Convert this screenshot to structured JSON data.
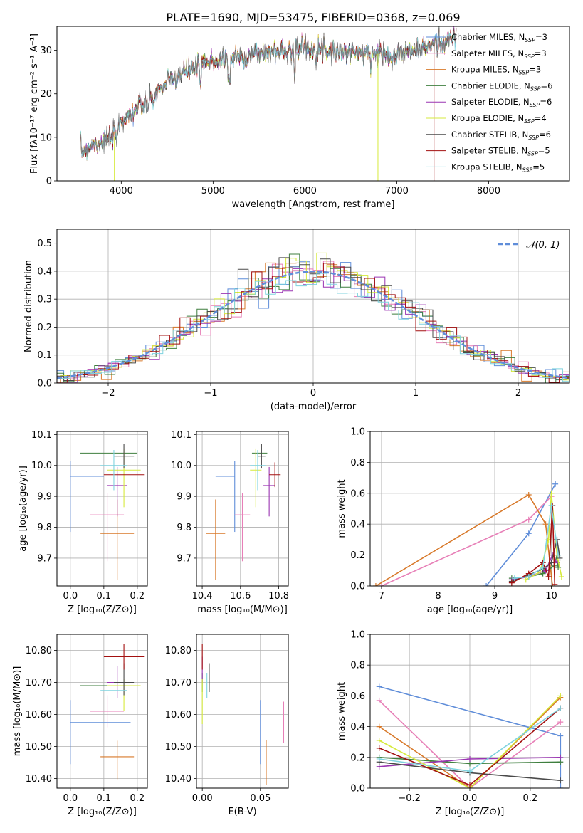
{
  "title": "PLATE=1690, MJD=53475, FIBERID=0368, z=0.069",
  "colors": {
    "chabrier_miles": "#5f8dd9",
    "salpeter_miles": "#e77fb7",
    "kroupa_miles": "#d8792a",
    "chabrier_elodie": "#3f7f3f",
    "salpeter_elodie": "#9a35b2",
    "kroupa_elodie": "#d6ea3c",
    "chabrier_stelib": "#4a4a4a",
    "salpeter_stelib": "#a31010",
    "kroupa_stelib": "#7fd3df",
    "grid": "#b0b0b0"
  },
  "chart_data": [
    {
      "id": "spectrum",
      "type": "line",
      "xlabel": "wavelength [Angstrom, rest frame]",
      "ylabel": "Flux [fλ10⁻¹⁷ erg cm⁻² s⁻¹ A⁻¹]",
      "xlim": [
        3300,
        8880
      ],
      "ylim": [
        0,
        35.5
      ],
      "xticks": [
        4000,
        5000,
        6000,
        7000,
        8000
      ],
      "yticks": [
        0,
        10,
        20,
        30
      ],
      "grid": false,
      "legend_position": "right",
      "legend": [
        {
          "label": "Chabrier MILES, N",
          "sub": "SSP",
          "suffix": "=3",
          "color_key": "chabrier_miles"
        },
        {
          "label": "Salpeter MILES, N",
          "sub": "SSP",
          "suffix": "=3",
          "color_key": "salpeter_miles"
        },
        {
          "label": "Kroupa MILES, N",
          "sub": "SSP",
          "suffix": "=3",
          "color_key": "kroupa_miles"
        },
        {
          "label": "Chabrier ELODIE, N",
          "sub": "SSP",
          "suffix": "=6",
          "color_key": "chabrier_elodie"
        },
        {
          "label": "Salpeter ELODIE, N",
          "sub": "SSP",
          "suffix": "=6",
          "color_key": "salpeter_elodie"
        },
        {
          "label": "Kroupa ELODIE, N",
          "sub": "SSP",
          "suffix": "=4",
          "color_key": "kroupa_elodie"
        },
        {
          "label": "Chabrier STELIB, N",
          "sub": "SSP",
          "suffix": "=6",
          "color_key": "chabrier_stelib"
        },
        {
          "label": "Salpeter STELIB, N",
          "sub": "SSP",
          "suffix": "=5",
          "color_key": "salpeter_stelib"
        },
        {
          "label": "Kroupa STELIB, N",
          "sub": "SSP",
          "suffix": "=5",
          "color_key": "kroupa_stelib"
        }
      ],
      "continuum": {
        "x": [
          3560,
          3700,
          3850,
          3950,
          4000,
          4100,
          4200,
          4300,
          4400,
          4500,
          4700,
          4900,
          5100,
          5300,
          5600,
          5900,
          6100,
          6300,
          6600,
          6900,
          7100,
          7300,
          7500,
          7650
        ],
        "y": [
          6.5,
          8.5,
          9.5,
          10.5,
          14.0,
          15.5,
          17.0,
          17.5,
          20.5,
          22.5,
          25.0,
          27.0,
          28.0,
          28.5,
          29.5,
          30.5,
          30.5,
          30.0,
          29.5,
          29.0,
          29.5,
          30.5,
          32.0,
          32.8
        ]
      },
      "spikes": [
        {
          "x": 3925,
          "y": 0
        },
        {
          "x": 6795,
          "y": 0
        },
        {
          "x": 7405,
          "y": 0
        }
      ]
    },
    {
      "id": "residuals",
      "type": "step",
      "xlabel": "(data-model)/error",
      "ylabel": "Normed distribution",
      "xlim": [
        -2.5,
        2.5
      ],
      "ylim": [
        0,
        0.55
      ],
      "xticks": [
        -2,
        -1,
        0,
        1,
        2
      ],
      "yticks": [
        0.0,
        0.1,
        0.2,
        0.3,
        0.4,
        0.5
      ],
      "grid": true,
      "bin_width": 0.1,
      "legend": {
        "label": "𝒩(0, 1)",
        "position": "top-right"
      },
      "normal": {
        "mean": 0,
        "sigma": 1
      }
    },
    {
      "id": "age_vs_Z",
      "type": "errorbar",
      "xlabel": "Z [log₁₀(Z/Z⊙)]",
      "ylabel": "age  [log₁₀(age/yr)]",
      "xlim": [
        -0.04,
        0.23
      ],
      "ylim": [
        9.61,
        10.11
      ],
      "xticks": [
        0.0,
        0.1,
        0.2
      ],
      "yticks": [
        9.7,
        9.8,
        9.9,
        10.0,
        10.1
      ],
      "grid": true,
      "points": [
        {
          "c": "chabrier_miles",
          "x": 0.0,
          "xerr": [
            0.0,
            0.0
          ],
          "y": 9.965,
          "yerr": [
            0.18,
            0.05
          ]
        },
        {
          "c": "chabrier_miles",
          "x": 0.1,
          "xerr": [
            0.1,
            0.0
          ],
          "y": 9.965,
          "yerr": [
            0.0,
            0.0
          ]
        },
        {
          "c": "salpeter_miles",
          "x": 0.11,
          "xerr": [
            0.05,
            0.05
          ],
          "y": 9.84,
          "yerr": [
            0.15,
            0.07
          ]
        },
        {
          "c": "kroupa_miles",
          "x": 0.14,
          "xerr": [
            0.05,
            0.05
          ],
          "y": 9.78,
          "yerr": [
            0.15,
            0.11
          ]
        },
        {
          "c": "chabrier_elodie",
          "x": 0.15,
          "xerr": [
            0.12,
            0.05
          ],
          "y": 10.04,
          "yerr": [
            0.0,
            0.0
          ]
        },
        {
          "c": "salpeter_elodie",
          "x": 0.14,
          "xerr": [
            0.03,
            0.03
          ],
          "y": 9.935,
          "yerr": [
            0.1,
            0.06
          ]
        },
        {
          "c": "kroupa_elodie",
          "x": 0.16,
          "xerr": [
            0.05,
            0.05
          ],
          "y": 9.985,
          "yerr": [
            0.12,
            0.07
          ]
        },
        {
          "c": "chabrier_stelib",
          "x": 0.16,
          "xerr": [
            0.03,
            0.03
          ],
          "y": 10.03,
          "yerr": [
            0.04,
            0.04
          ]
        },
        {
          "c": "salpeter_stelib",
          "x": 0.16,
          "xerr": [
            0.06,
            0.06
          ],
          "y": 9.97,
          "yerr": [
            0.0,
            0.0
          ]
        },
        {
          "c": "kroupa_stelib",
          "x": 0.13,
          "xerr": [
            0.04,
            0.04
          ],
          "y": 10.0,
          "yerr": [
            0.08,
            0.05
          ]
        }
      ]
    },
    {
      "id": "age_vs_mass",
      "type": "errorbar",
      "xlabel": "mass [log₁₀(M/M⊙)]",
      "ylabel": "",
      "xlim": [
        10.37,
        10.85
      ],
      "ylim": [
        9.61,
        10.11
      ],
      "xticks": [
        10.4,
        10.6,
        10.8
      ],
      "yticks": [
        9.7,
        9.8,
        9.9,
        10.0,
        10.1
      ],
      "grid": true,
      "points": [
        {
          "c": "chabrier_miles",
          "x": 10.57,
          "xerr": [
            0.1,
            0.0
          ],
          "y": 9.965,
          "yerr": [
            0.18,
            0.05
          ]
        },
        {
          "c": "salpeter_miles",
          "x": 10.61,
          "xerr": [
            0.04,
            0.04
          ],
          "y": 9.84,
          "yerr": [
            0.15,
            0.07
          ]
        },
        {
          "c": "kroupa_miles",
          "x": 10.47,
          "xerr": [
            0.05,
            0.05
          ],
          "y": 9.78,
          "yerr": [
            0.15,
            0.11
          ]
        },
        {
          "c": "chabrier_elodie",
          "x": 10.69,
          "xerr": [
            0.03,
            0.05
          ],
          "y": 10.04,
          "yerr": [
            0.0,
            0.0
          ]
        },
        {
          "c": "salpeter_elodie",
          "x": 10.75,
          "xerr": [
            0.03,
            0.03
          ],
          "y": 9.935,
          "yerr": [
            0.1,
            0.06
          ]
        },
        {
          "c": "kroupa_elodie",
          "x": 10.68,
          "xerr": [
            0.03,
            0.03
          ],
          "y": 9.985,
          "yerr": [
            0.12,
            0.07
          ]
        },
        {
          "c": "chabrier_stelib",
          "x": 10.71,
          "xerr": [
            0.02,
            0.02
          ],
          "y": 10.03,
          "yerr": [
            0.04,
            0.04
          ]
        },
        {
          "c": "salpeter_stelib",
          "x": 10.78,
          "xerr": [
            0.03,
            0.03
          ],
          "y": 9.97,
          "yerr": [
            0.04,
            0.04
          ]
        },
        {
          "c": "kroupa_stelib",
          "x": 10.69,
          "xerr": [
            0.04,
            0.04
          ],
          "y": 10.0,
          "yerr": [
            0.08,
            0.05
          ]
        }
      ]
    },
    {
      "id": "weight_vs_age",
      "type": "line",
      "xlabel": "age  [log₁₀(age/yr)]",
      "ylabel": "mass weight",
      "xlim": [
        6.8,
        10.32
      ],
      "ylim": [
        0,
        1.0
      ],
      "xticks": [
        7,
        8,
        9,
        10
      ],
      "yticks": [
        0.0,
        0.2,
        0.4,
        0.6,
        0.8,
        1.0
      ],
      "grid": true,
      "series": [
        {
          "c": "chabrier_miles",
          "x": [
            8.85,
            9.6,
            10.07
          ],
          "y": [
            0.0,
            0.34,
            0.66
          ]
        },
        {
          "c": "salpeter_miles",
          "x": [
            7.0,
            9.6,
            10.0
          ],
          "y": [
            0.0,
            0.43,
            0.58
          ]
        },
        {
          "c": "kroupa_miles",
          "x": [
            6.9,
            9.6,
            9.9,
            10.02
          ],
          "y": [
            0.0,
            0.59,
            0.4,
            0.0
          ]
        },
        {
          "c": "chabrier_elodie",
          "x": [
            9.3,
            9.6,
            9.85,
            10.05,
            10.1,
            10.12
          ],
          "y": [
            0.05,
            0.06,
            0.08,
            0.13,
            0.2,
            0.12
          ]
        },
        {
          "c": "salpeter_elodie",
          "x": [
            9.3,
            9.6,
            9.9,
            10.02,
            10.1
          ],
          "y": [
            0.04,
            0.06,
            0.1,
            0.2,
            0.15
          ]
        },
        {
          "c": "kroupa_elodie",
          "x": [
            9.55,
            9.8,
            9.95,
            10.0,
            10.1,
            10.18
          ],
          "y": [
            0.04,
            0.09,
            0.3,
            0.6,
            0.2,
            0.06
          ]
        },
        {
          "c": "chabrier_stelib",
          "x": [
            9.3,
            9.6,
            9.85,
            10.0,
            10.1,
            10.15
          ],
          "y": [
            0.03,
            0.07,
            0.11,
            0.15,
            0.3,
            0.18
          ]
        },
        {
          "c": "salpeter_stelib",
          "x": [
            9.3,
            9.6,
            9.85,
            9.95,
            10.02,
            10.06
          ],
          "y": [
            0.02,
            0.08,
            0.15,
            0.06,
            0.52,
            0.01
          ]
        },
        {
          "c": "kroupa_stelib",
          "x": [
            9.35,
            9.6,
            9.85,
            10.0,
            10.12
          ],
          "y": [
            0.05,
            0.06,
            0.12,
            0.52,
            0.2
          ]
        }
      ]
    },
    {
      "id": "mass_vs_Z",
      "type": "errorbar",
      "xlabel": "Z [log₁₀(Z/Z⊙)]",
      "ylabel": "mass [log₁₀(M/M⊙)]",
      "xlim": [
        -0.04,
        0.23
      ],
      "ylim": [
        10.37,
        10.85
      ],
      "xticks": [
        0.0,
        0.1,
        0.2
      ],
      "yticks": [
        10.4,
        10.5,
        10.6,
        10.7,
        10.8
      ],
      "grid": true,
      "points": [
        {
          "c": "chabrier_miles",
          "x": 0.0,
          "xerr": [
            0.0,
            0.0
          ],
          "y": 10.575,
          "yerr": [
            0.13,
            0.07
          ]
        },
        {
          "c": "chabrier_miles",
          "x": 0.08,
          "xerr": [
            0.08,
            0.1
          ],
          "y": 10.575,
          "yerr": [
            0.0,
            0.0
          ]
        },
        {
          "c": "salpeter_miles",
          "x": 0.11,
          "xerr": [
            0.05,
            0.05
          ],
          "y": 10.61,
          "yerr": [
            0.05,
            0.05
          ]
        },
        {
          "c": "kroupa_miles",
          "x": 0.14,
          "xerr": [
            0.05,
            0.05
          ],
          "y": 10.468,
          "yerr": [
            0.07,
            0.05
          ]
        },
        {
          "c": "chabrier_elodie",
          "x": 0.15,
          "xerr": [
            0.12,
            0.05
          ],
          "y": 10.69,
          "yerr": [
            0.0,
            0.0
          ]
        },
        {
          "c": "salpeter_elodie",
          "x": 0.14,
          "xerr": [
            0.03,
            0.03
          ],
          "y": 10.7,
          "yerr": [
            0.05,
            0.05
          ]
        },
        {
          "c": "kroupa_elodie",
          "x": 0.16,
          "xerr": [
            0.05,
            0.05
          ],
          "y": 10.69,
          "yerr": [
            0.08,
            0.02
          ]
        },
        {
          "c": "chabrier_stelib",
          "x": 0.16,
          "xerr": [
            0.03,
            0.03
          ],
          "y": 10.7,
          "yerr": [
            0.04,
            0.06
          ]
        },
        {
          "c": "salpeter_stelib",
          "x": 0.16,
          "xerr": [
            0.06,
            0.06
          ],
          "y": 10.78,
          "yerr": [
            0.04,
            0.04
          ]
        },
        {
          "c": "kroupa_stelib",
          "x": 0.13,
          "xerr": [
            0.04,
            0.04
          ],
          "y": 10.675,
          "yerr": [
            0.0,
            0.0
          ]
        }
      ]
    },
    {
      "id": "mass_vs_ebv",
      "type": "errorbar",
      "xlabel": "E(B-V)",
      "ylabel": "",
      "xlim": [
        -0.005,
        0.074
      ],
      "ylim": [
        10.37,
        10.85
      ],
      "xticks": [
        0.0,
        0.05
      ],
      "yticks": [
        10.4,
        10.5,
        10.6,
        10.7,
        10.8
      ],
      "grid": true,
      "points": [
        {
          "c": "chabrier_miles",
          "x": 0.05,
          "xerr": [
            0.0,
            0.0
          ],
          "y": 10.575,
          "yerr": [
            0.13,
            0.07
          ]
        },
        {
          "c": "salpeter_miles",
          "x": 0.07,
          "xerr": [
            0.0,
            0.0
          ],
          "y": 10.57,
          "yerr": [
            0.06,
            0.07
          ]
        },
        {
          "c": "kroupa_miles",
          "x": 0.055,
          "xerr": [
            0.0,
            0.0
          ],
          "y": 10.45,
          "yerr": [
            0.07,
            0.07
          ]
        },
        {
          "c": "chabrier_elodie",
          "x": 0.0,
          "xerr": [
            0.0,
            0.0
          ],
          "y": 10.7,
          "yerr": [
            0.03,
            0.03
          ]
        },
        {
          "c": "salpeter_elodie",
          "x": 0.0,
          "xerr": [
            0.0,
            0.0
          ],
          "y": 10.74,
          "yerr": [
            0.04,
            0.04
          ]
        },
        {
          "c": "kroupa_elodie",
          "x": 0.0,
          "xerr": [
            0.0,
            0.0
          ],
          "y": 10.66,
          "yerr": [
            0.09,
            0.05
          ]
        },
        {
          "c": "chabrier_stelib",
          "x": 0.006,
          "xerr": [
            0.0,
            0.0
          ],
          "y": 10.71,
          "yerr": [
            0.04,
            0.05
          ]
        },
        {
          "c": "salpeter_stelib",
          "x": 0.0,
          "xerr": [
            0.0,
            0.0
          ],
          "y": 10.78,
          "yerr": [
            0.04,
            0.04
          ]
        },
        {
          "c": "kroupa_stelib",
          "x": 0.004,
          "xerr": [
            0.0,
            0.0
          ],
          "y": 10.69,
          "yerr": [
            0.04,
            0.04
          ]
        }
      ]
    },
    {
      "id": "weight_vs_Z",
      "type": "line",
      "xlabel": "Z [log₁₀(Z/Z⊙)]",
      "ylabel": "mass weight",
      "xlim": [
        -0.33,
        0.33
      ],
      "ylim": [
        0,
        1.0
      ],
      "xticks": [
        -0.2,
        0.0,
        0.2
      ],
      "yticks": [
        0.0,
        0.2,
        0.4,
        0.6,
        0.8,
        1.0
      ],
      "grid": true,
      "series": [
        {
          "c": "chabrier_miles",
          "x": [
            -0.3,
            0.3,
            0.3
          ],
          "y": [
            0.66,
            0.34,
            0.0
          ]
        },
        {
          "c": "salpeter_miles",
          "x": [
            -0.3,
            0.0,
            0.3
          ],
          "y": [
            0.57,
            0.0,
            0.43
          ]
        },
        {
          "c": "kroupa_miles",
          "x": [
            -0.3,
            0.0,
            0.3
          ],
          "y": [
            0.4,
            0.0,
            0.59
          ]
        },
        {
          "c": "chabrier_elodie",
          "x": [
            -0.3,
            0.0,
            0.3
          ],
          "y": [
            0.2,
            0.16,
            0.17
          ]
        },
        {
          "c": "salpeter_elodie",
          "x": [
            -0.3,
            0.0,
            0.3
          ],
          "y": [
            0.14,
            0.19,
            0.2
          ]
        },
        {
          "c": "kroupa_elodie",
          "x": [
            -0.3,
            0.0,
            0.3
          ],
          "y": [
            0.31,
            0.0,
            0.6
          ]
        },
        {
          "c": "chabrier_stelib",
          "x": [
            -0.3,
            0.0,
            0.3
          ],
          "y": [
            0.17,
            0.1,
            0.05
          ]
        },
        {
          "c": "salpeter_stelib",
          "x": [
            -0.3,
            0.0,
            0.3
          ],
          "y": [
            0.26,
            0.02,
            0.52
          ]
        },
        {
          "c": "kroupa_stelib",
          "x": [
            -0.3,
            0.0,
            0.3
          ],
          "y": [
            0.19,
            0.11,
            0.52
          ]
        }
      ]
    }
  ]
}
